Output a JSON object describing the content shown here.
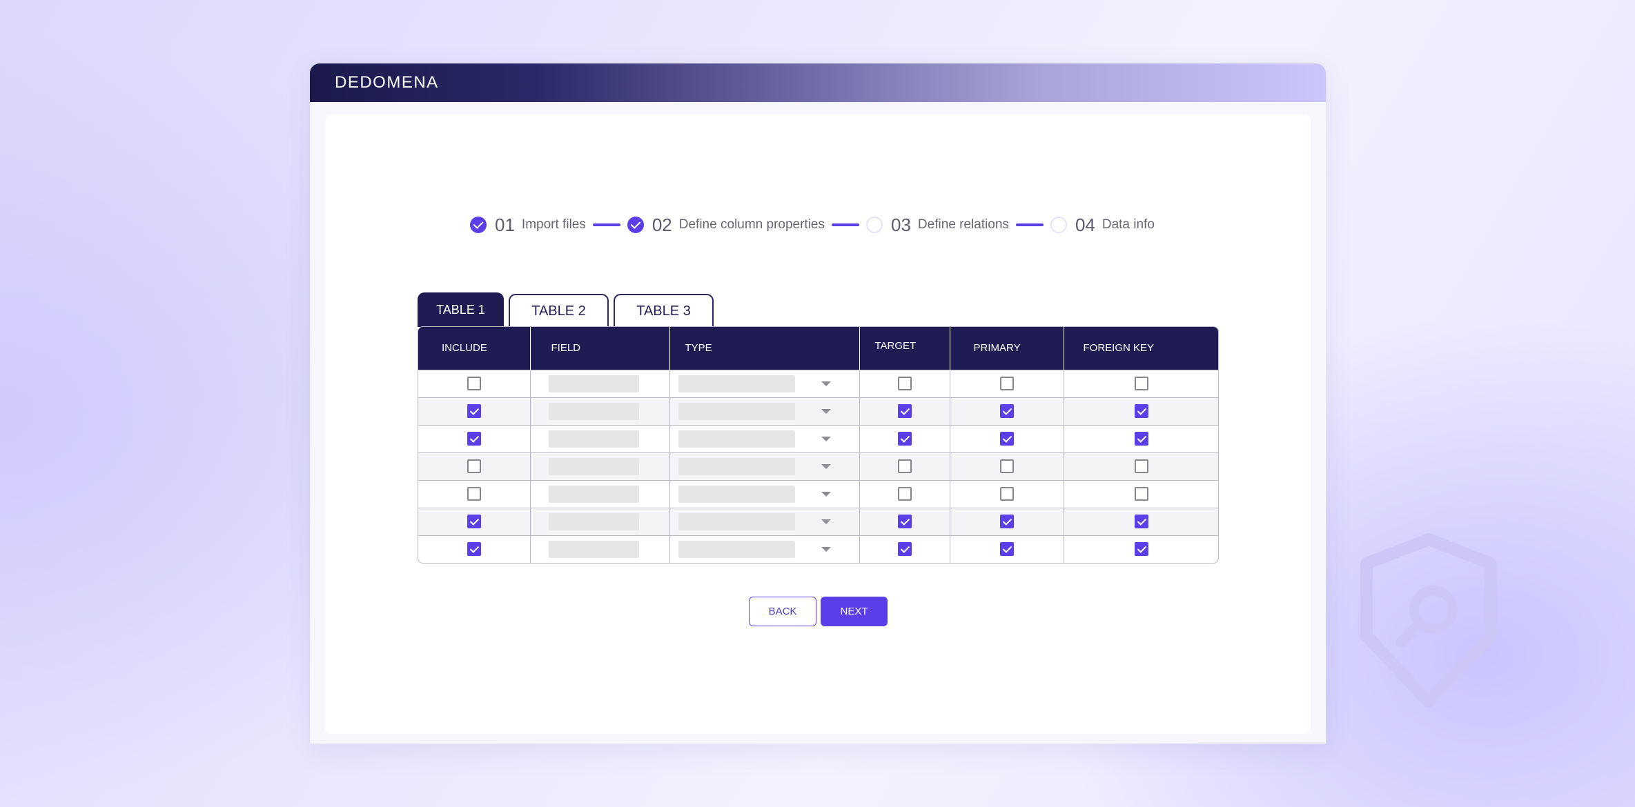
{
  "brand": {
    "logo_text": "DEDOMENA"
  },
  "stepper": {
    "steps": [
      {
        "number": "01",
        "label": "Import files",
        "completed": true
      },
      {
        "number": "02",
        "label": "Define column properties",
        "completed": true
      },
      {
        "number": "03",
        "label": "Define relations",
        "completed": false
      },
      {
        "number": "04",
        "label": "Data info",
        "completed": false
      }
    ]
  },
  "tabs": [
    {
      "label": "TABLE 1",
      "active": true
    },
    {
      "label": "TABLE 2",
      "active": false
    },
    {
      "label": "TABLE 3",
      "active": false
    }
  ],
  "table": {
    "columns": [
      "INCLUDE",
      "FIELD",
      "TYPE",
      "TARGET",
      "PRIMARY",
      "FOREIGN KEY"
    ],
    "rows": [
      {
        "include": false,
        "target": false,
        "primary": false,
        "foreign_key": false
      },
      {
        "include": true,
        "target": true,
        "primary": true,
        "foreign_key": true
      },
      {
        "include": true,
        "target": true,
        "primary": true,
        "foreign_key": true
      },
      {
        "include": false,
        "target": false,
        "primary": false,
        "foreign_key": false
      },
      {
        "include": false,
        "target": false,
        "primary": false,
        "foreign_key": false
      },
      {
        "include": true,
        "target": true,
        "primary": true,
        "foreign_key": true
      },
      {
        "include": true,
        "target": true,
        "primary": true,
        "foreign_key": true
      }
    ]
  },
  "actions": {
    "back_label": "BACK",
    "next_label": "NEXT"
  },
  "colors": {
    "accent": "#5b3ee8",
    "header_dark": "#1f1c54"
  },
  "icons": {
    "watermark": "shield-search-icon"
  }
}
